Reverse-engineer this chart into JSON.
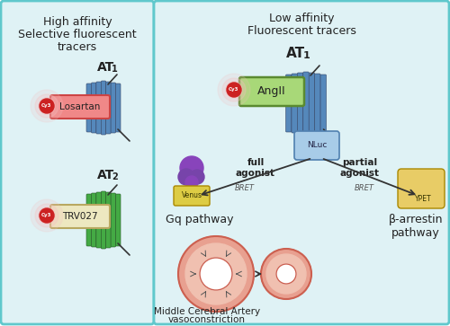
{
  "fig_width": 5.0,
  "fig_height": 3.63,
  "dpi": 100,
  "bg_color": "#ffffff",
  "panel_bg": "#dff2f5",
  "panel_border": "#60c8cc",
  "left_panel": {
    "title_line1": "High affinity",
    "title_line2": "Selective fluorescent",
    "title_line3": "tracers",
    "at1_label": "AT",
    "at1_sub": "1",
    "at2_label": "AT",
    "at2_sub": "2",
    "losartan_text": "Losartan",
    "trv027_text": "TRV027",
    "cy3_text": "Cy3"
  },
  "right_panel": {
    "title_line1": "Low affinity",
    "title_line2": "Fluorescent tracers",
    "at1_label": "AT",
    "at1_sub": "1",
    "angii_text": "AngII",
    "nluc_text": "NLuc",
    "full_agonist": "full\nagonist",
    "partial_agonist": "partial\nagonist",
    "bret_left": "BRET",
    "bret_right": "BRET",
    "venus_text": "Venus",
    "ypet_text": "YPET",
    "gq_pathway": "Gq pathway",
    "beta_arrestin": "β-arrestin\npathway",
    "mca_line1": "Middle Cerebral Artery",
    "mca_line2": "vasoconstriction",
    "cy3_text": "Cy3"
  },
  "colors": {
    "cy3_red": "#cc2222",
    "cy3_glow1": "#f5c0c0",
    "cy3_glow2": "#eeaaaa",
    "losartan_box": "#f08888",
    "losartan_border": "#cc4444",
    "trv027_box": "#ede8c0",
    "trv027_border": "#b8a860",
    "angii_box": "#a8d878",
    "angii_border": "#5a8a30",
    "nluc_box": "#a8cce8",
    "nluc_border": "#5080b0",
    "receptor_blue": "#5588bb",
    "receptor_green": "#44aa44",
    "venus_purple": "#8844bb",
    "venus_body": "#7744aa",
    "venus_yellow": "#ddcc44",
    "ypet_yellow": "#e8cc66",
    "artery_outer": "#e8a090",
    "artery_mid": "#f0c0b0",
    "artery_border": "#cc6050",
    "artery_inner": "#f8f0e8",
    "arrow_color": "#333333",
    "text_color": "#222222",
    "spoke_color": "#555555"
  }
}
